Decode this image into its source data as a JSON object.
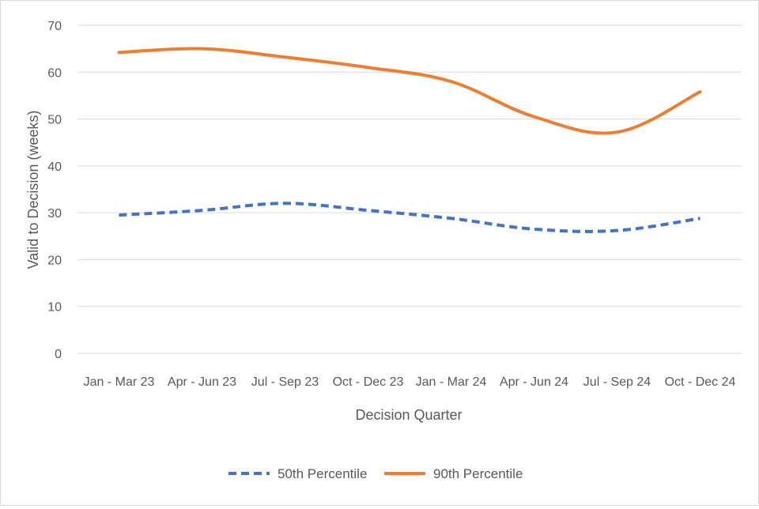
{
  "chart_data": {
    "type": "line",
    "title": "",
    "xlabel": "Decision Quarter",
    "ylabel": "Valid to Decision (weeks)",
    "ylim": [
      0,
      70
    ],
    "yticks": [
      0,
      10,
      20,
      30,
      40,
      50,
      60,
      70
    ],
    "grid": true,
    "legend_position": "bottom",
    "categories": [
      "Jan - Mar 23",
      "Apr - Jun 23",
      "Jul - Sep 23",
      "Oct - Dec 23",
      "Jan - Mar 24",
      "Apr - Jun 24",
      "Jul - Sep 24",
      "Oct - Dec 24"
    ],
    "series": [
      {
        "name": "50th Percentile",
        "color": "#4472c4",
        "style": "dashed",
        "values": [
          29.5,
          30.5,
          32,
          30.5,
          28.8,
          26.5,
          26.2,
          28.8
        ]
      },
      {
        "name": "90th Percentile",
        "color": "#ed7d31",
        "style": "solid",
        "values": [
          64.2,
          65,
          63.2,
          61,
          58,
          50.5,
          47.2,
          55.8
        ]
      }
    ]
  }
}
